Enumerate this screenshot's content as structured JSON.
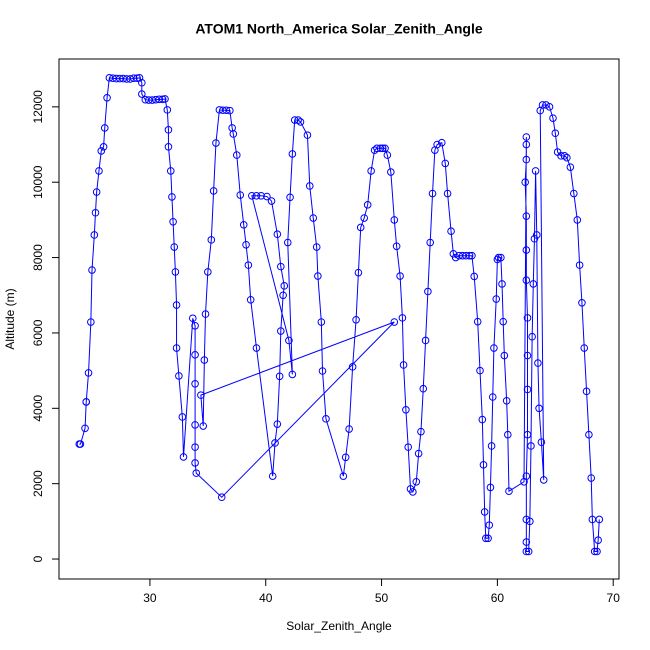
{
  "chart_data": {
    "type": "line-points",
    "title": "ATOM1 North_America Solar_Zenith_Angle",
    "x_label": "Solar_Zenith_Angle",
    "y_label": "Altitude (m)",
    "color": "#0000ff",
    "xlim": [
      22.15,
      70.5
    ],
    "ylim": [
      -530,
      13270
    ],
    "xticks": [
      30,
      40,
      50,
      60,
      70
    ],
    "yticks": [
      0,
      2000,
      4000,
      6000,
      8000,
      10000,
      12000
    ],
    "x": [
      23.9,
      24.0,
      24.4,
      24.5,
      24.5,
      24.7,
      24.9,
      25.0,
      25.2,
      25.3,
      25.4,
      25.6,
      25.8,
      26.0,
      26.1,
      26.3,
      26.5,
      26.8,
      27.1,
      27.4,
      27.7,
      28.0,
      28.3,
      28.6,
      28.9,
      29.1,
      29.3,
      29.3,
      29.6,
      29.9,
      30.2,
      30.5,
      30.8,
      31.1,
      31.3,
      31.5,
      31.6,
      31.6,
      31.8,
      31.9,
      32.0,
      32.1,
      32.2,
      32.3,
      32.3,
      32.5,
      32.8,
      32.9,
      33.7,
      33.9,
      33.9,
      33.9,
      33.9,
      33.9,
      33.9,
      34.0,
      36.2,
      51.1,
      34.4,
      34.6,
      34.7,
      34.8,
      35.0,
      35.3,
      35.5,
      35.7,
      36.0,
      36.3,
      36.6,
      36.9,
      37.1,
      37.2,
      37.5,
      37.8,
      38.1,
      38.3,
      38.5,
      38.7,
      39.2,
      40.6,
      40.8,
      41.0,
      41.2,
      41.3,
      41.5,
      41.6,
      41.3,
      41.0,
      40.5,
      40.1,
      39.6,
      39.2,
      38.8,
      42.0,
      42.3,
      41.9,
      42.1,
      42.3,
      42.5,
      42.8,
      43.0,
      43.6,
      43.8,
      44.1,
      44.4,
      44.5,
      44.8,
      44.9,
      45.2,
      46.7,
      46.9,
      47.2,
      47.5,
      47.8,
      48.0,
      48.2,
      48.5,
      48.8,
      49.1,
      49.4,
      49.6,
      49.9,
      50.1,
      50.3,
      50.5,
      50.8,
      51.1,
      51.3,
      51.6,
      51.8,
      51.9,
      52.1,
      52.3,
      52.5,
      52.7,
      53.0,
      53.2,
      53.4,
      53.6,
      53.8,
      54.0,
      54.2,
      54.4,
      54.6,
      54.8,
      55.2,
      55.5,
      55.7,
      56.0,
      56.2,
      56.4,
      56.7,
      57.0,
      57.3,
      57.6,
      57.8,
      58.0,
      58.3,
      58.5,
      58.7,
      58.8,
      58.9,
      59.0,
      59.2,
      59.3,
      59.4,
      59.5,
      59.6,
      59.7,
      59.9,
      60.0,
      60.1,
      60.3,
      60.4,
      60.5,
      60.6,
      60.8,
      60.9,
      61.0,
      62.3,
      62.5,
      62.5,
      62.5,
      62.4,
      62.5,
      62.5,
      62.5,
      62.6,
      62.6,
      62.6,
      62.6,
      62.5,
      62.5,
      62.5,
      62.5,
      62.7,
      62.8,
      62.9,
      63.0,
      63.1,
      63.2,
      63.3,
      63.4,
      63.5,
      63.6,
      63.8,
      64.0,
      63.7,
      63.9,
      64.2,
      64.5,
      64.8,
      65.0,
      65.2,
      65.5,
      65.8,
      66.0,
      66.3,
      66.6,
      66.9,
      67.1,
      67.3,
      67.5,
      67.7,
      67.9,
      68.1,
      68.2,
      68.4,
      68.6,
      68.7,
      68.8
    ],
    "values": [
      3050,
      3050,
      3470,
      4170,
      4170,
      4940,
      6290,
      7670,
      8600,
      9190,
      9740,
      10300,
      10830,
      10940,
      11440,
      12240,
      12770,
      12760,
      12750,
      12750,
      12750,
      12740,
      12740,
      12760,
      12760,
      12770,
      12640,
      12340,
      12190,
      12180,
      12180,
      12190,
      12200,
      12200,
      12210,
      11920,
      11390,
      10940,
      10300,
      9610,
      8950,
      8280,
      7620,
      6740,
      5600,
      4860,
      3770,
      2710,
      6390,
      6190,
      5420,
      4650,
      3560,
      2970,
      2550,
      2280,
      1640,
      6290,
      4350,
      3530,
      5280,
      6500,
      7620,
      8470,
      9770,
      11040,
      11920,
      11910,
      11910,
      11900,
      11440,
      11280,
      10720,
      9660,
      8870,
      8340,
      7800,
      6880,
      5600,
      2200,
      3080,
      3580,
      4850,
      6050,
      7000,
      7250,
      7760,
      8620,
      9500,
      9620,
      9640,
      9640,
      9640,
      5800,
      4900,
      8400,
      9600,
      10750,
      11650,
      11650,
      11600,
      11250,
      9900,
      9050,
      8280,
      7510,
      6290,
      4990,
      3720,
      2200,
      2700,
      3450,
      5100,
      6350,
      7600,
      8800,
      9050,
      9400,
      10300,
      10850,
      10900,
      10900,
      10900,
      10900,
      10720,
      10270,
      9000,
      8300,
      7510,
      6400,
      5150,
      3960,
      2970,
      1860,
      1780,
      2050,
      2800,
      3380,
      4520,
      5800,
      7100,
      8400,
      9700,
      10850,
      11000,
      11050,
      10500,
      9700,
      8700,
      8100,
      8000,
      8050,
      8050,
      8050,
      8050,
      8050,
      7500,
      6300,
      5000,
      3700,
      2500,
      1250,
      550,
      550,
      900,
      1900,
      3000,
      4300,
      5600,
      6900,
      7950,
      8000,
      8000,
      7300,
      6300,
      5400,
      4200,
      3300,
      1800,
      2050,
      11200,
      11000,
      10600,
      10000,
      9100,
      8200,
      7400,
      6400,
      5400,
      4500,
      3300,
      2200,
      1050,
      450,
      200,
      200,
      1000,
      3000,
      5900,
      7300,
      8500,
      10300,
      8600,
      5200,
      4000,
      3100,
      2100,
      11900,
      12050,
      12050,
      12000,
      11700,
      11300,
      10800,
      10700,
      10700,
      10650,
      10400,
      9700,
      9000,
      7800,
      6800,
      5600,
      4450,
      3300,
      2150,
      1050,
      200,
      200,
      500,
      1050
    ]
  }
}
